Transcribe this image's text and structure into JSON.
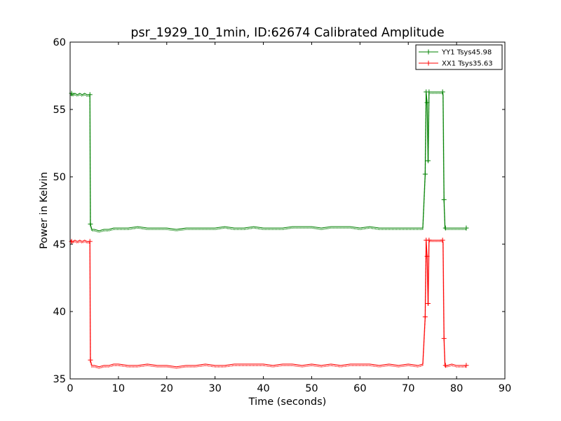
{
  "chart_data": {
    "type": "line",
    "title": "psr_1929_10_1min, ID:62674 Calibrated Amplitude",
    "xlabel": "Time (seconds)",
    "ylabel": "Power in Kelvin",
    "xlim": [
      0,
      90
    ],
    "ylim": [
      35,
      60
    ],
    "xticks": [
      0,
      10,
      20,
      30,
      40,
      50,
      60,
      70,
      80,
      90
    ],
    "yticks": [
      35,
      40,
      45,
      50,
      55,
      60
    ],
    "grid": false,
    "legend_position": "top-right",
    "series": [
      {
        "name": "YY1 Tsys45.98",
        "color": "#008000",
        "marker": "plus",
        "x": [
          0.1,
          0.5,
          1.0,
          1.5,
          2.0,
          2.5,
          3.0,
          3.5,
          4.1,
          4.2,
          4.5,
          5.0,
          6.0,
          7.0,
          8.0,
          9.0,
          10.0,
          12.0,
          14.0,
          16.0,
          18.0,
          20.0,
          22.0,
          24.0,
          26.0,
          28.0,
          30.0,
          32.0,
          34.0,
          36.0,
          38.0,
          40.0,
          42.0,
          44.0,
          46.0,
          48.0,
          50.0,
          52.0,
          54.0,
          56.0,
          58.0,
          60.0,
          62.0,
          64.0,
          66.0,
          68.0,
          70.0,
          72.0,
          73.0,
          73.5,
          73.7,
          73.9,
          74.1,
          74.3,
          74.6,
          75.0,
          75.5,
          76.0,
          76.5,
          77.0,
          77.2,
          77.4,
          77.6,
          78.0,
          79.0,
          80.0,
          81.0,
          82.0
        ],
        "y": [
          56.2,
          56.1,
          56.2,
          56.1,
          56.2,
          56.1,
          56.2,
          56.1,
          56.1,
          46.5,
          46.1,
          46.1,
          46.0,
          46.1,
          46.1,
          46.2,
          46.2,
          46.2,
          46.3,
          46.2,
          46.2,
          46.2,
          46.1,
          46.2,
          46.2,
          46.2,
          46.2,
          46.3,
          46.2,
          46.2,
          46.3,
          46.2,
          46.2,
          46.2,
          46.3,
          46.3,
          46.3,
          46.2,
          46.3,
          46.3,
          46.3,
          46.2,
          46.3,
          46.2,
          46.2,
          46.2,
          46.2,
          46.2,
          46.2,
          50.2,
          56.3,
          55.5,
          51.2,
          56.3,
          56.3,
          56.3,
          56.3,
          56.3,
          56.3,
          56.3,
          56.2,
          48.3,
          46.2,
          46.2,
          46.2,
          46.2,
          46.2,
          46.2
        ],
        "marker_points": [
          [
            0.3,
            56.2
          ],
          [
            4.1,
            56.1
          ],
          [
            4.2,
            46.5
          ],
          [
            73.5,
            50.2
          ],
          [
            73.7,
            56.3
          ],
          [
            73.9,
            55.5
          ],
          [
            74.1,
            51.2
          ],
          [
            74.3,
            56.3
          ],
          [
            77.1,
            56.3
          ],
          [
            77.4,
            48.3
          ],
          [
            77.7,
            46.2
          ],
          [
            82.0,
            46.2
          ]
        ]
      },
      {
        "name": "XX1 Tsys35.63",
        "color": "#ff0000",
        "marker": "plus",
        "x": [
          0.1,
          0.5,
          1.0,
          1.5,
          2.0,
          2.5,
          3.0,
          3.5,
          4.1,
          4.2,
          4.5,
          5.0,
          6.0,
          7.0,
          8.0,
          9.0,
          10.0,
          12.0,
          14.0,
          16.0,
          18.0,
          20.0,
          22.0,
          24.0,
          26.0,
          28.0,
          30.0,
          32.0,
          34.0,
          36.0,
          38.0,
          40.0,
          42.0,
          44.0,
          46.0,
          48.0,
          50.0,
          52.0,
          54.0,
          56.0,
          58.0,
          60.0,
          62.0,
          64.0,
          66.0,
          68.0,
          70.0,
          72.0,
          73.0,
          73.5,
          73.7,
          73.9,
          74.1,
          74.3,
          74.6,
          75.0,
          75.5,
          76.0,
          76.5,
          77.0,
          77.2,
          77.4,
          77.6,
          78.0,
          79.0,
          80.0,
          81.0,
          82.0
        ],
        "y": [
          45.3,
          45.2,
          45.3,
          45.2,
          45.3,
          45.2,
          45.3,
          45.2,
          45.2,
          36.4,
          36.0,
          36.0,
          35.9,
          36.0,
          36.0,
          36.1,
          36.1,
          36.0,
          36.0,
          36.1,
          36.0,
          36.0,
          35.9,
          36.0,
          36.0,
          36.1,
          36.0,
          36.0,
          36.1,
          36.1,
          36.1,
          36.1,
          36.0,
          36.1,
          36.1,
          36.0,
          36.1,
          36.0,
          36.1,
          36.0,
          36.1,
          36.1,
          36.1,
          36.0,
          36.1,
          36.0,
          36.1,
          36.0,
          36.1,
          39.6,
          45.3,
          44.1,
          40.6,
          45.3,
          45.3,
          45.3,
          45.3,
          45.3,
          45.3,
          45.3,
          45.2,
          38.0,
          36.0,
          36.0,
          36.1,
          36.0,
          36.0,
          36.0
        ],
        "marker_points": [
          [
            0.3,
            45.2
          ],
          [
            4.1,
            45.2
          ],
          [
            4.2,
            36.4
          ],
          [
            73.5,
            39.6
          ],
          [
            73.7,
            45.3
          ],
          [
            73.9,
            44.1
          ],
          [
            74.1,
            40.6
          ],
          [
            74.3,
            45.3
          ],
          [
            77.1,
            45.3
          ],
          [
            77.4,
            38.0
          ],
          [
            77.7,
            36.0
          ],
          [
            82.0,
            36.0
          ]
        ]
      }
    ]
  }
}
